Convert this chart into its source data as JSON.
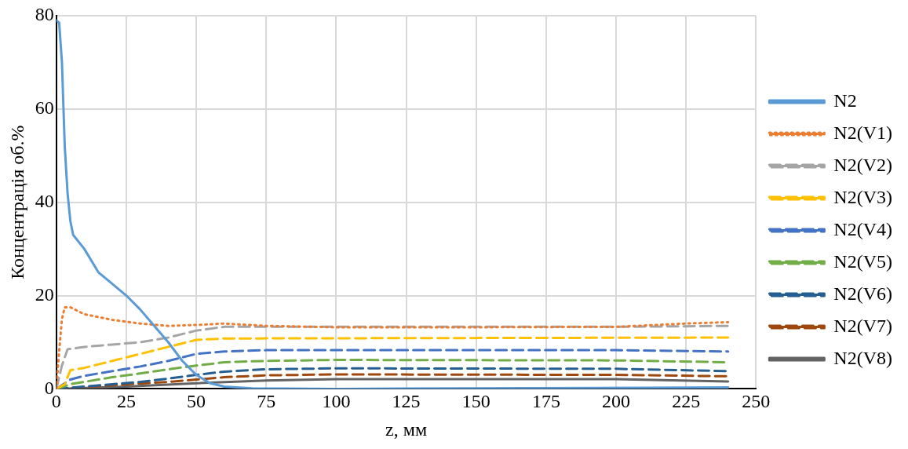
{
  "chart_data": {
    "type": "line",
    "xlabel": "z, мм",
    "ylabel": "Концентрація об.%",
    "xlim": [
      0,
      250
    ],
    "xticks": [
      0,
      25,
      50,
      75,
      100,
      125,
      150,
      175,
      200,
      225,
      250
    ],
    "ylim": [
      0,
      80
    ],
    "yticks": [
      0,
      20,
      40,
      60,
      80
    ],
    "grid": true,
    "legend": "right",
    "marker": "none",
    "series": [
      {
        "name": "N2",
        "color": "#5b9bd5",
        "line_style": "solid",
        "x": [
          0,
          1,
          2,
          3,
          4,
          5,
          6,
          10,
          15,
          20,
          25,
          30,
          35,
          40,
          45,
          50,
          55,
          60,
          70,
          100,
          240
        ],
        "values": [
          79,
          78.5,
          70,
          52,
          42,
          36,
          33,
          30,
          25,
          22.5,
          20,
          17,
          13.5,
          10,
          6,
          3,
          1.2,
          0.5,
          0.1,
          0,
          0.3
        ]
      },
      {
        "name": "N2(V1)",
        "color": "#ed7d31",
        "line_style": "dotted",
        "x": [
          0,
          1,
          2,
          3,
          5,
          10,
          20,
          30,
          40,
          50,
          60,
          75,
          100,
          150,
          200,
          225,
          240
        ],
        "values": [
          0,
          8,
          15,
          17.5,
          17.5,
          16,
          14.8,
          14,
          13.5,
          13.7,
          14,
          13.5,
          13.2,
          13.2,
          13.3,
          14,
          14.3
        ]
      },
      {
        "name": "N2(V2)",
        "color": "#a5a5a5",
        "line_style": "dashed",
        "x": [
          0,
          2,
          4,
          10,
          20,
          30,
          40,
          50,
          60,
          75,
          200,
          240
        ],
        "values": [
          0,
          5,
          8.5,
          9,
          9.5,
          10,
          11,
          12.5,
          13.3,
          13.3,
          13.3,
          13.5
        ]
      },
      {
        "name": "N2(V3)",
        "color": "#ffc000",
        "line_style": "dashed",
        "x": [
          0,
          3,
          5,
          10,
          20,
          30,
          40,
          50,
          60,
          240
        ],
        "values": [
          0,
          1,
          4,
          4.5,
          6,
          7.5,
          9,
          10.5,
          10.8,
          11
        ]
      },
      {
        "name": "N2(V4)",
        "color": "#4472c4",
        "line_style": "dashed",
        "x": [
          0,
          5,
          10,
          20,
          30,
          40,
          50,
          60,
          75,
          200,
          240
        ],
        "values": [
          0,
          2,
          2.8,
          3.8,
          4.8,
          6,
          7.5,
          8,
          8.3,
          8.3,
          8
        ]
      },
      {
        "name": "N2(V5)",
        "color": "#70ad47",
        "line_style": "dashed",
        "x": [
          0,
          5,
          10,
          20,
          30,
          40,
          50,
          60,
          75,
          100,
          200,
          240
        ],
        "values": [
          0,
          1,
          1.5,
          2.5,
          3.3,
          4.2,
          5,
          5.7,
          6,
          6.2,
          6.1,
          5.7
        ]
      },
      {
        "name": "N2(V6)",
        "color": "#255e91",
        "line_style": "dashed",
        "x": [
          0,
          10,
          20,
          30,
          40,
          50,
          60,
          75,
          100,
          200,
          240
        ],
        "values": [
          0,
          0.5,
          1,
          1.5,
          2.2,
          3,
          3.7,
          4.2,
          4.4,
          4.3,
          3.8
        ]
      },
      {
        "name": "N2(V7)",
        "color": "#9e480e",
        "line_style": "dashed",
        "x": [
          0,
          20,
          40,
          50,
          60,
          75,
          100,
          200,
          240
        ],
        "values": [
          0,
          0.8,
          1.5,
          2,
          2.5,
          2.9,
          3.1,
          3,
          2.7
        ]
      },
      {
        "name": "N2(V8)",
        "color": "#636363",
        "line_style": "solid",
        "x": [
          0,
          25,
          50,
          75,
          100,
          200,
          240
        ],
        "values": [
          0,
          0.5,
          1.2,
          1.8,
          2.1,
          2.1,
          1.6
        ]
      }
    ]
  }
}
